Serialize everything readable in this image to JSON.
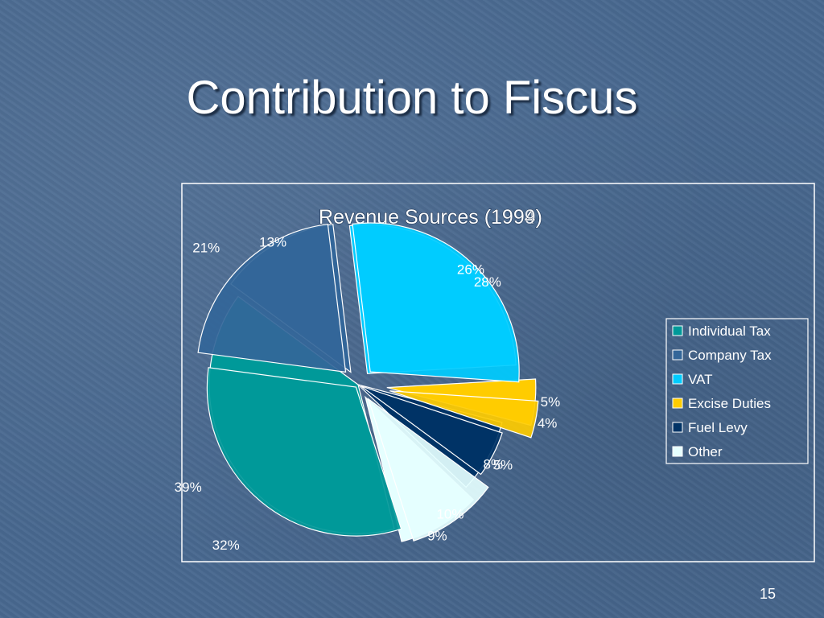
{
  "slide": {
    "title": "Contribution to Fiscus",
    "page_number": "15"
  },
  "colors": {
    "background": "#48688f",
    "individual_tax": "#009999",
    "company_tax": "#336699",
    "vat": "#00ccff",
    "excise_duties": "#ffcc00",
    "fuel_levy": "#003366",
    "other": "#e5ffff"
  },
  "chart_data": [
    {
      "type": "pie",
      "title": "Revenue Sources (1994)",
      "categories": [
        "Individual Tax",
        "Company Tax",
        "VAT",
        "Excise Duties",
        "Fuel Levy",
        "Other"
      ],
      "values": [
        39,
        13,
        26,
        5,
        8,
        9
      ],
      "labels": [
        "39%",
        "13%",
        "26%",
        "5%",
        "8%",
        "9%"
      ]
    },
    {
      "type": "pie",
      "title": "Revenue Sources (1999)",
      "categories": [
        "Individual Tax",
        "Company Tax",
        "VAT",
        "Excise Duties",
        "Fuel Levy",
        "Other"
      ],
      "values": [
        32,
        21,
        28,
        4,
        5,
        10
      ],
      "labels": [
        "32%",
        "21%",
        "28%",
        "4%",
        "5%",
        "10%"
      ],
      "legend_position": "right"
    }
  ]
}
